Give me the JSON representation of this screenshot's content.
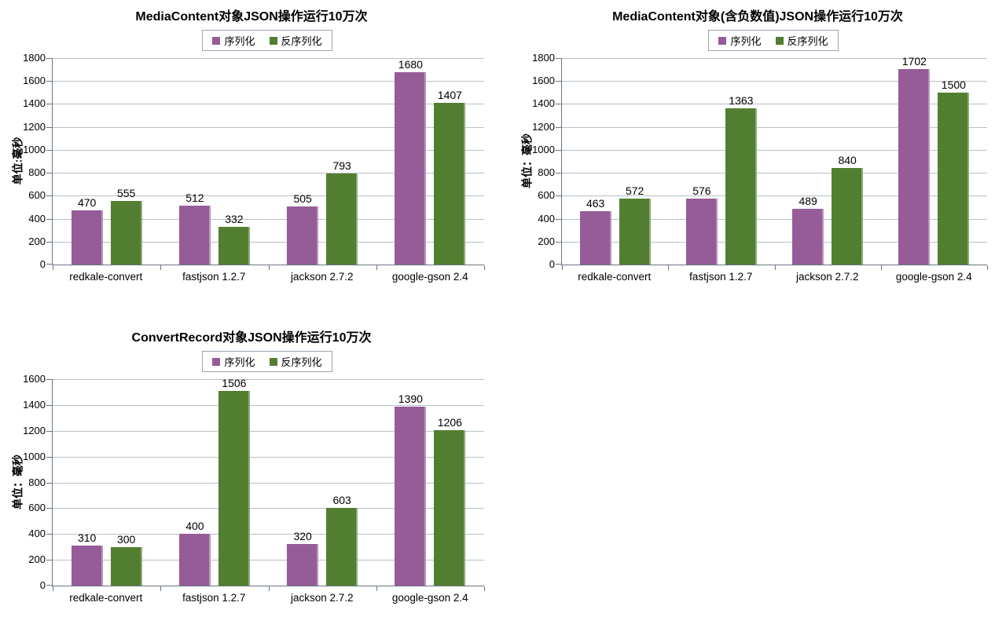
{
  "styles": {
    "background": "#ffffff",
    "grid_color": "#b7c0ca",
    "axis_color": "#6a7580",
    "text_color": "#000000",
    "legend_border_color": "#9aa5b2",
    "series_purple": "#955C98",
    "series_green": "#527E31"
  },
  "chart_data": [
    {
      "type": "bar",
      "title": "MediaContent对象JSON操作运行10万次",
      "ylabel": "单位:毫秒",
      "xlabel": "",
      "categories": [
        "redkale-convert",
        "fastjson 1.2.7",
        "jackson 2.7.2",
        "google-gson 2.4"
      ],
      "series": [
        {
          "name": "序列化",
          "color": "#955C98",
          "values": [
            470,
            512,
            505,
            1680
          ]
        },
        {
          "name": "反序列化",
          "color": "#527E31",
          "values": [
            555,
            332,
            793,
            1407
          ]
        }
      ],
      "ylim": [
        0,
        1800
      ],
      "ytick_step": 200,
      "grid": true,
      "legend_position": "top",
      "data_labels": true
    },
    {
      "type": "bar",
      "title": "MediaContent对象(含负数值)JSON操作运行10万次",
      "ylabel": "单位：毫秒",
      "xlabel": "",
      "categories": [
        "redkale-convert",
        "fastjson 1.2.7",
        "jackson 2.7.2",
        "google-gson 2.4"
      ],
      "series": [
        {
          "name": "序列化",
          "color": "#955C98",
          "values": [
            463,
            576,
            489,
            1702
          ]
        },
        {
          "name": "反序列化",
          "color": "#527E31",
          "values": [
            572,
            1363,
            840,
            1500
          ]
        }
      ],
      "ylim": [
        0,
        1800
      ],
      "ytick_step": 200,
      "grid": true,
      "legend_position": "top",
      "data_labels": true
    },
    {
      "type": "bar",
      "title": "ConvertRecord对象JSON操作运行10万次",
      "ylabel": "单位：毫秒",
      "xlabel": "",
      "categories": [
        "redkale-convert",
        "fastjson 1.2.7",
        "jackson 2.7.2",
        "google-gson 2.4"
      ],
      "series": [
        {
          "name": "序列化",
          "color": "#955C98",
          "values": [
            310,
            400,
            320,
            1390
          ]
        },
        {
          "name": "反序列化",
          "color": "#527E31",
          "values": [
            300,
            1506,
            603,
            1206
          ]
        }
      ],
      "ylim": [
        0,
        1600
      ],
      "ytick_step": 200,
      "grid": true,
      "legend_position": "top",
      "data_labels": true
    }
  ]
}
